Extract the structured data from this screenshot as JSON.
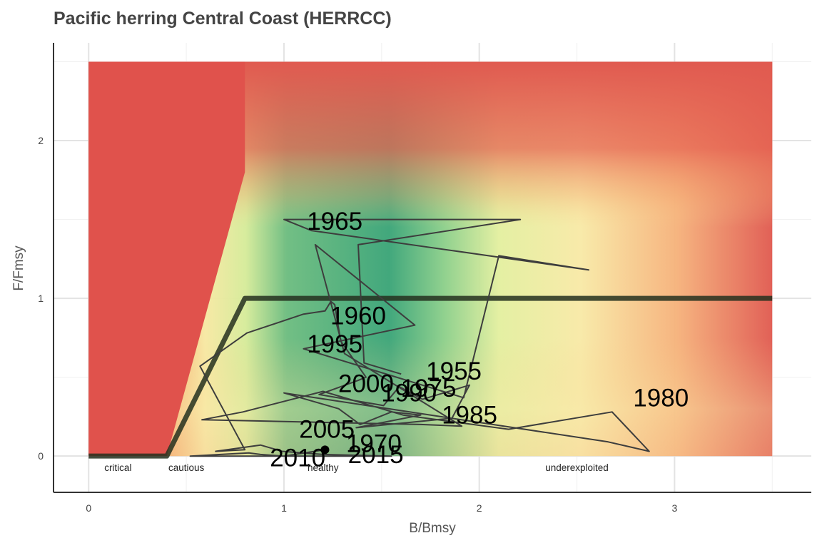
{
  "chart_data": {
    "type": "line",
    "title": "Pacific herring Central Coast (HERRCC)",
    "xlabel": "B/Bmsy",
    "ylabel": "F/Fmsy",
    "xlim": [
      -0.18,
      3.7
    ],
    "ylim": [
      -0.23,
      2.62
    ],
    "x_ticks": [
      "0",
      "1",
      "2",
      "3"
    ],
    "y_ticks": [
      "0",
      "1",
      "2"
    ],
    "grid": true,
    "background_region": {
      "x": [
        0,
        3.5
      ],
      "y": [
        0,
        2.5
      ]
    },
    "zone_labels": [
      "critical",
      "cautious",
      "healthy",
      "underexploited"
    ],
    "reference_line": {
      "name": "",
      "x": [
        0,
        0.4,
        0.8,
        3.5
      ],
      "y": [
        0,
        0,
        1,
        1
      ]
    },
    "series": [
      {
        "name": "",
        "x": [
          1.6,
          1.41,
          1.38,
          2.21,
          1.0,
          1.14,
          2.56,
          2.1,
          1.92,
          1.1,
          1.67,
          1.16,
          1.31,
          1.91,
          1.7,
          0.58,
          0.79,
          1.2,
          1.61,
          2.15,
          2.68,
          2.87,
          2.66,
          1.0,
          1.28,
          1.39,
          1.55,
          1.7,
          1.37,
          1.86,
          1.95,
          1.71,
          1.59,
          1.51,
          1.18,
          1.38,
          1.42,
          1.29,
          1.26,
          1.24,
          1.21,
          1.1,
          0.81,
          0.57,
          0.8,
          0.65,
          0.88,
          0.99,
          1.2,
          1.55,
          0.52,
          0.82,
          0.88,
          1.0,
          1.21
        ],
        "y": [
          0.52,
          0.59,
          1.34,
          1.5,
          1.5,
          1.43,
          1.18,
          1.27,
          0.37,
          0.68,
          0.83,
          1.34,
          0.65,
          0.19,
          0.2,
          0.23,
          0.28,
          0.41,
          0.26,
          0.17,
          0.28,
          0.03,
          0.09,
          0.4,
          0.3,
          0.2,
          0.28,
          0.26,
          0.18,
          0.24,
          0.45,
          0.36,
          0.44,
          0.32,
          0.39,
          0.48,
          0.5,
          0.73,
          0.96,
          0.98,
          0.92,
          0.9,
          0.78,
          0.57,
          0.04,
          0.03,
          0.07,
          0.03,
          0.01,
          0.0,
          0.0,
          0.02,
          0.01,
          0.0,
          0.04
        ]
      }
    ],
    "year_labels": [
      {
        "label": "1955",
        "x": 1.87,
        "y": 0.54
      },
      {
        "label": "1960",
        "x": 1.38,
        "y": 0.89
      },
      {
        "label": "1965",
        "x": 1.26,
        "y": 1.49
      },
      {
        "label": "1970",
        "x": 1.46,
        "y": 0.08
      },
      {
        "label": "1975",
        "x": 1.74,
        "y": 0.43
      },
      {
        "label": "1980",
        "x": 2.93,
        "y": 0.37
      },
      {
        "label": "1985",
        "x": 1.95,
        "y": 0.26
      },
      {
        "label": "1990",
        "x": 1.64,
        "y": 0.4
      },
      {
        "label": "1995",
        "x": 1.26,
        "y": 0.71
      },
      {
        "label": "2000",
        "x": 1.42,
        "y": 0.46
      },
      {
        "label": "2005",
        "x": 1.22,
        "y": 0.17
      },
      {
        "label": "2010",
        "x": 1.07,
        "y": -0.01
      },
      {
        "label": "2015",
        "x": 1.47,
        "y": 0.01
      }
    ],
    "current_point": {
      "x": 1.21,
      "y": 0.04
    }
  }
}
